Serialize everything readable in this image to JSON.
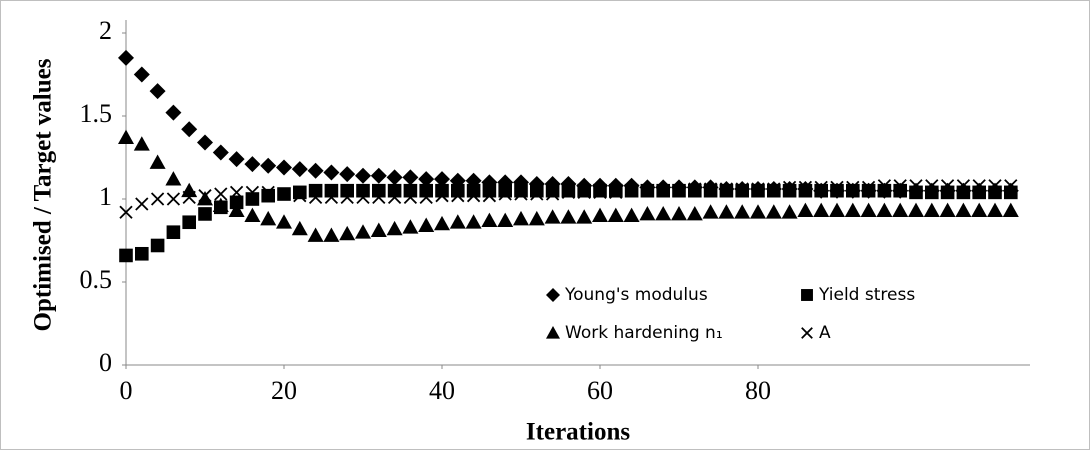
{
  "chart_data": {
    "type": "scatter",
    "xlabel": "Iterations",
    "ylabel": "Optimised / Target values",
    "xlim": [
      0,
      114
    ],
    "xticks": [
      0,
      20,
      40,
      60,
      80
    ],
    "ylim": [
      0,
      2
    ],
    "yticks": [
      0,
      0.5,
      1,
      1.5,
      2
    ],
    "x": [
      0,
      2,
      4,
      6,
      8,
      10,
      12,
      14,
      16,
      18,
      20,
      22,
      24,
      26,
      28,
      30,
      32,
      34,
      36,
      38,
      40,
      42,
      44,
      46,
      48,
      50,
      52,
      54,
      56,
      58,
      60,
      62,
      64,
      66,
      68,
      70,
      72,
      74,
      76,
      78,
      80,
      82,
      84,
      86,
      88,
      90,
      92,
      94,
      96,
      98,
      100,
      102,
      104,
      106,
      108,
      110,
      112
    ],
    "series": [
      {
        "name": "Young's modulus",
        "color": "#000000",
        "marker": "diamond",
        "values": [
          1.85,
          1.75,
          1.65,
          1.52,
          1.42,
          1.34,
          1.28,
          1.24,
          1.21,
          1.2,
          1.19,
          1.18,
          1.17,
          1.16,
          1.15,
          1.14,
          1.14,
          1.13,
          1.13,
          1.12,
          1.12,
          1.11,
          1.11,
          1.1,
          1.1,
          1.1,
          1.09,
          1.09,
          1.09,
          1.08,
          1.08,
          1.08,
          1.08,
          1.07,
          1.07,
          1.07,
          1.07,
          1.07,
          1.06,
          1.06,
          1.06,
          1.06,
          1.06,
          1.06,
          1.05,
          1.05,
          1.05,
          1.05,
          1.05,
          1.05,
          1.05,
          1.05,
          1.05,
          1.05,
          1.05,
          1.05,
          1.05
        ]
      },
      {
        "name": "Yield stress",
        "color": "#000000",
        "marker": "square",
        "values": [
          0.66,
          0.67,
          0.72,
          0.8,
          0.86,
          0.91,
          0.95,
          0.98,
          1.0,
          1.02,
          1.03,
          1.04,
          1.05,
          1.05,
          1.05,
          1.05,
          1.05,
          1.05,
          1.05,
          1.05,
          1.05,
          1.05,
          1.05,
          1.05,
          1.05,
          1.05,
          1.05,
          1.05,
          1.05,
          1.05,
          1.05,
          1.05,
          1.05,
          1.05,
          1.05,
          1.05,
          1.05,
          1.05,
          1.05,
          1.05,
          1.05,
          1.05,
          1.05,
          1.05,
          1.05,
          1.05,
          1.05,
          1.05,
          1.05,
          1.05,
          1.04,
          1.04,
          1.04,
          1.04,
          1.04,
          1.04,
          1.04
        ]
      },
      {
        "name": "Work hardening n₁",
        "color": "#000000",
        "marker": "triangle",
        "values": [
          1.37,
          1.33,
          1.22,
          1.12,
          1.05,
          1.0,
          0.96,
          0.93,
          0.9,
          0.88,
          0.86,
          0.82,
          0.78,
          0.78,
          0.79,
          0.8,
          0.81,
          0.82,
          0.83,
          0.84,
          0.85,
          0.86,
          0.86,
          0.87,
          0.87,
          0.88,
          0.88,
          0.89,
          0.89,
          0.89,
          0.9,
          0.9,
          0.9,
          0.91,
          0.91,
          0.91,
          0.91,
          0.92,
          0.92,
          0.92,
          0.92,
          0.92,
          0.92,
          0.93,
          0.93,
          0.93,
          0.93,
          0.93,
          0.93,
          0.93,
          0.93,
          0.93,
          0.93,
          0.93,
          0.93,
          0.93,
          0.93
        ]
      },
      {
        "name": "A",
        "color": "#000000",
        "marker": "cross",
        "values": [
          0.92,
          0.97,
          1.0,
          1.0,
          1.01,
          1.02,
          1.03,
          1.04,
          1.04,
          1.04,
          1.03,
          1.02,
          1.01,
          1.01,
          1.01,
          1.01,
          1.01,
          1.01,
          1.01,
          1.01,
          1.02,
          1.02,
          1.02,
          1.02,
          1.03,
          1.03,
          1.03,
          1.03,
          1.04,
          1.04,
          1.04,
          1.04,
          1.05,
          1.05,
          1.05,
          1.05,
          1.06,
          1.06,
          1.06,
          1.06,
          1.06,
          1.06,
          1.07,
          1.07,
          1.07,
          1.07,
          1.07,
          1.07,
          1.08,
          1.08,
          1.08,
          1.08,
          1.08,
          1.08,
          1.08,
          1.08,
          1.08
        ]
      }
    ]
  }
}
